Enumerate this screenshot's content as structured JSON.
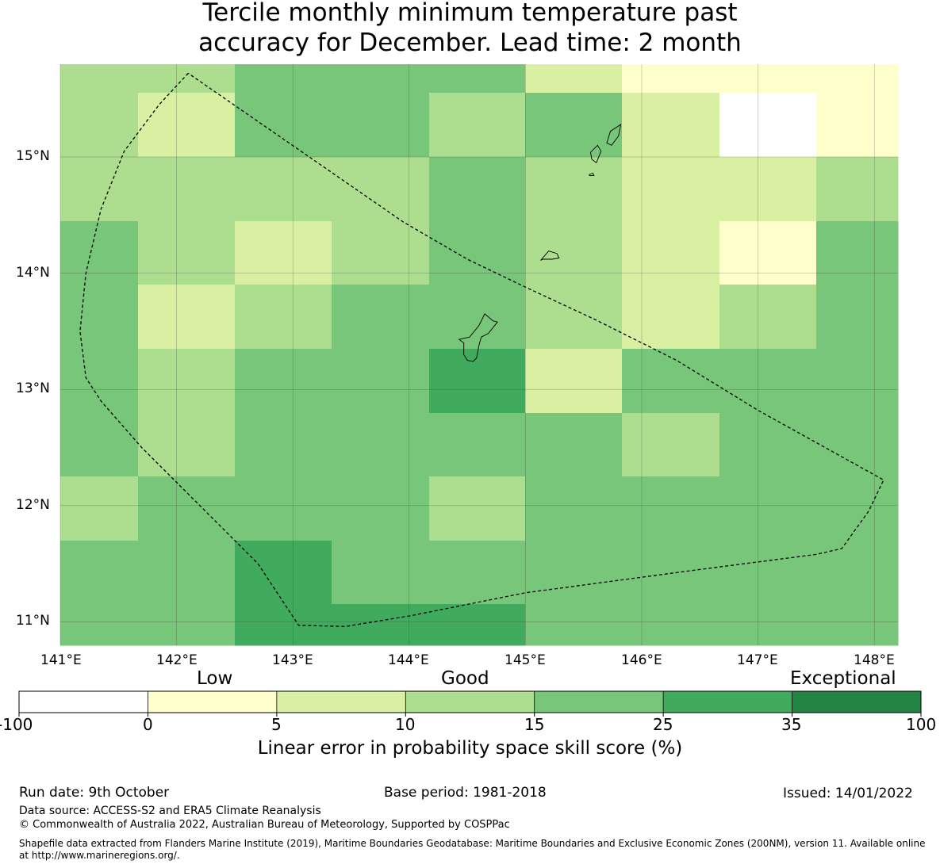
{
  "title": {
    "line1": "Tercile monthly minimum temperature past",
    "line2": "accuracy for December. Lead time: 2 month"
  },
  "map": {
    "lon_labels": [
      "141°E",
      "142°E",
      "143°E",
      "144°E",
      "145°E",
      "146°E",
      "147°E",
      "148°E"
    ],
    "lat_labels": [
      "15°N",
      "14°N",
      "13°N",
      "12°N",
      "11°N"
    ],
    "grid_lon_edges": [
      141.0,
      141.67,
      142.5,
      143.33,
      144.17,
      145.0,
      145.83,
      146.67,
      147.5,
      148.2
    ],
    "grid_lat_edges": [
      15.8,
      15.55,
      15.0,
      14.45,
      13.9,
      13.35,
      12.8,
      12.25,
      11.7,
      11.15,
      10.8
    ],
    "skill_classes": [
      [
        3,
        3,
        4,
        4,
        4,
        2,
        1,
        1,
        1
      ],
      [
        3,
        2,
        4,
        4,
        3,
        4,
        2,
        0,
        1
      ],
      [
        3,
        3,
        3,
        3,
        4,
        3,
        2,
        2,
        3
      ],
      [
        4,
        3,
        2,
        3,
        4,
        3,
        2,
        1,
        4
      ],
      [
        4,
        2,
        3,
        4,
        4,
        3,
        2,
        3,
        4
      ],
      [
        4,
        3,
        4,
        4,
        5,
        2,
        4,
        4,
        4
      ],
      [
        4,
        3,
        4,
        4,
        4,
        4,
        3,
        4,
        4
      ],
      [
        3,
        4,
        4,
        4,
        3,
        4,
        4,
        4,
        4
      ],
      [
        4,
        4,
        5,
        4,
        4,
        4,
        4,
        4,
        4
      ],
      [
        4,
        4,
        5,
        5,
        5,
        4,
        4,
        4,
        4
      ]
    ],
    "eez_boundary": [
      [
        142.1,
        15.72
      ],
      [
        141.85,
        15.45
      ],
      [
        141.55,
        15.05
      ],
      [
        141.35,
        14.55
      ],
      [
        141.22,
        14.0
      ],
      [
        141.17,
        13.5
      ],
      [
        141.22,
        13.1
      ],
      [
        141.35,
        12.9
      ],
      [
        141.7,
        12.5
      ],
      [
        142.2,
        12.0
      ],
      [
        142.7,
        11.5
      ],
      [
        143.05,
        10.97
      ],
      [
        143.45,
        10.96
      ],
      [
        144.0,
        11.05
      ],
      [
        145.0,
        11.25
      ],
      [
        146.5,
        11.45
      ],
      [
        147.5,
        11.58
      ],
      [
        147.72,
        11.63
      ],
      [
        147.95,
        11.95
      ],
      [
        148.08,
        12.22
      ],
      [
        147.0,
        12.82
      ],
      [
        146.3,
        13.25
      ],
      [
        145.6,
        13.6
      ],
      [
        145.0,
        13.88
      ],
      [
        144.5,
        14.12
      ],
      [
        143.95,
        14.44
      ],
      [
        142.1,
        15.72
      ]
    ],
    "islands": [
      [
        [
          144.65,
          13.65
        ],
        [
          144.72,
          13.59
        ],
        [
          144.76,
          13.58
        ],
        [
          144.68,
          13.48
        ],
        [
          144.62,
          13.45
        ],
        [
          144.6,
          13.38
        ],
        [
          144.58,
          13.27
        ],
        [
          144.55,
          13.24
        ],
        [
          144.5,
          13.25
        ],
        [
          144.47,
          13.3
        ],
        [
          144.47,
          13.4
        ],
        [
          144.43,
          13.43
        ],
        [
          144.52,
          13.45
        ],
        [
          144.6,
          13.55
        ],
        [
          144.65,
          13.65
        ]
      ],
      [
        [
          145.2,
          14.19
        ],
        [
          145.27,
          14.17
        ],
        [
          145.29,
          14.13
        ],
        [
          145.23,
          14.12
        ],
        [
          145.15,
          14.12
        ],
        [
          145.13,
          14.11
        ],
        [
          145.2,
          14.19
        ]
      ],
      [
        [
          145.82,
          15.28
        ],
        [
          145.73,
          15.22
        ],
        [
          145.7,
          15.12
        ],
        [
          145.74,
          15.1
        ],
        [
          145.8,
          15.18
        ],
        [
          145.82,
          15.28
        ]
      ],
      [
        [
          145.62,
          15.1
        ],
        [
          145.65,
          15.05
        ],
        [
          145.61,
          14.95
        ],
        [
          145.57,
          14.98
        ],
        [
          145.56,
          15.04
        ],
        [
          145.62,
          15.1
        ]
      ],
      [
        [
          145.55,
          14.85
        ],
        [
          145.58,
          14.86
        ],
        [
          145.59,
          14.84
        ],
        [
          145.55,
          14.84
        ],
        [
          145.55,
          14.85
        ]
      ]
    ]
  },
  "legend": {
    "category_labels": [
      "Low",
      "Good",
      "Exceptional"
    ],
    "bins": [
      "-100",
      "0",
      "5",
      "10",
      "15",
      "25",
      "35",
      "100"
    ],
    "colors": [
      "#ffffff",
      "#ffffcc",
      "#d9f0a3",
      "#addd8e",
      "#78c679",
      "#41ab5d",
      "#238443"
    ],
    "axis_label": "Linear error in probability space skill score (%)"
  },
  "footer": {
    "run_date": "Run date: 9th October",
    "base_period": "Base period: 1981-2018",
    "issued": "Issued: 14/01/2022",
    "data_source": "Data source: ACCESS-S2 and ERA5 Climate Reanalysis",
    "copyright": "© Commonwealth of Australia 2022, Australian Bureau of Meteorology, Supported by COSPPac",
    "shapefile_line1": "Shapefile data extracted from Flanders Marine Institute (2019), Maritime Boundaries Geodatabase: Maritime Boundaries and Exclusive Economic Zones (200NM), version 11. Available online",
    "shapefile_line2": "at http://www.marineregions.org/."
  }
}
